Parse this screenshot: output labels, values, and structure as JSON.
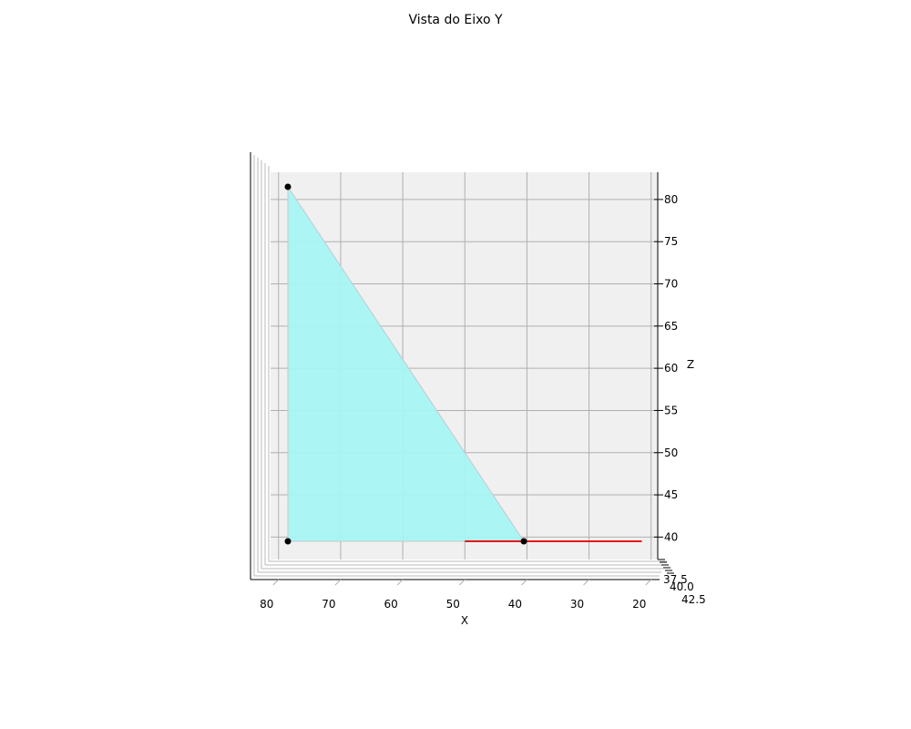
{
  "chart_data": {
    "type": "3d-projection",
    "title": "Vista do Eixo Y",
    "xlabel": "X",
    "zlabel": "Z",
    "x_ticks": [
      80,
      70,
      60,
      50,
      40,
      30,
      20
    ],
    "x_tick_labels": [
      "80",
      "70",
      "60",
      "50",
      "40",
      "30",
      "20"
    ],
    "z_ticks": [
      40,
      45,
      50,
      55,
      60,
      65,
      70,
      75,
      80
    ],
    "z_tick_labels": [
      "40",
      "45",
      "50",
      "55",
      "60",
      "65",
      "70",
      "75",
      "80"
    ],
    "y_tick_labels_overlapping": [
      "37.5",
      "40.0",
      "42.5"
    ],
    "xlim": [
      84.5,
      20
    ],
    "zlim": [
      37.5,
      83
    ],
    "grid": true,
    "triangle": {
      "fill_color": "#a6f4f4",
      "vertices": [
        {
          "x": 78.5,
          "z": 81.5
        },
        {
          "x": 78.5,
          "z": 39.5
        },
        {
          "x": 40.5,
          "z": 39.5
        }
      ]
    },
    "points": [
      {
        "x": 78.5,
        "z": 81.5,
        "color": "#000000"
      },
      {
        "x": 78.5,
        "z": 39.5,
        "color": "#000000"
      },
      {
        "x": 40.5,
        "z": 39.5,
        "color": "#000000"
      }
    ],
    "lines": [
      {
        "color": "#e8181a",
        "x": [
          50,
          21.5
        ],
        "z": [
          39.5,
          39.5
        ]
      }
    ]
  }
}
